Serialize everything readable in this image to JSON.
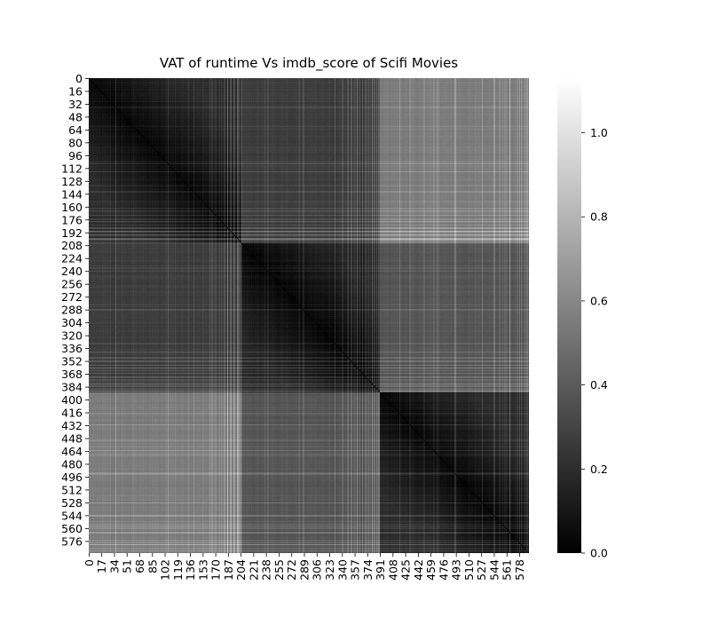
{
  "chart_data": {
    "type": "heatmap",
    "title": "VAT of runtime Vs imdb_score of Scifi Movies",
    "colormap": "gray",
    "colormap_low_color": "#000000",
    "colormap_high_color": "#ffffff",
    "matrix_size": 591,
    "cluster_boundaries": [
      0,
      205,
      391,
      591
    ],
    "value_range": [
      0.0,
      1.13
    ],
    "y_tick_labels": [
      "0",
      "16",
      "32",
      "48",
      "64",
      "80",
      "96",
      "112",
      "128",
      "144",
      "160",
      "176",
      "192",
      "208",
      "224",
      "240",
      "256",
      "272",
      "288",
      "304",
      "320",
      "336",
      "352",
      "368",
      "384",
      "400",
      "416",
      "432",
      "448",
      "464",
      "480",
      "496",
      "512",
      "528",
      "544",
      "560",
      "576"
    ],
    "x_tick_labels": [
      "0",
      "17",
      "34",
      "51",
      "68",
      "85",
      "102",
      "119",
      "136",
      "153",
      "170",
      "187",
      "204",
      "221",
      "238",
      "255",
      "272",
      "289",
      "306",
      "323",
      "340",
      "357",
      "374",
      "391",
      "408",
      "425",
      "442",
      "459",
      "476",
      "493",
      "510",
      "527",
      "544",
      "561",
      "578"
    ],
    "colorbar": {
      "ticks": [
        "0.0",
        "0.2",
        "0.4",
        "0.6",
        "0.8",
        "1.0"
      ],
      "tick_values": [
        0.0,
        0.2,
        0.4,
        0.6,
        0.8,
        1.0
      ],
      "range": [
        0.0,
        1.13
      ]
    }
  }
}
